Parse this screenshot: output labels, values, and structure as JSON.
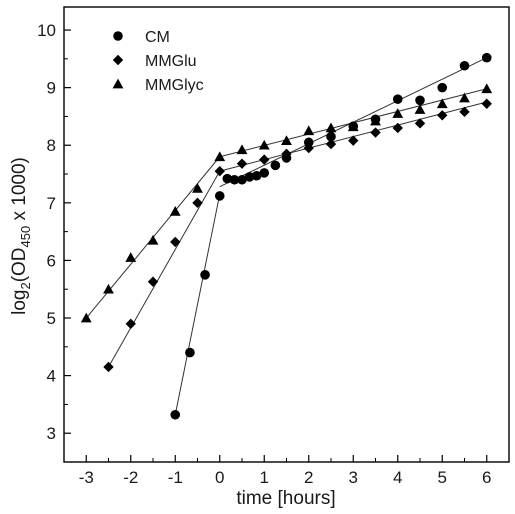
{
  "chart_data": {
    "type": "scatter",
    "xlabel": "time [hours]",
    "ylabel": "log2(OD450 x 1000)",
    "ylabel_parts": {
      "pre": "log",
      "sub1": "2",
      "mid": "(OD",
      "sub2": "450",
      "post": " x 1000)"
    },
    "xlim": [
      -3.5,
      6.5
    ],
    "ylim": [
      2.5,
      10.4
    ],
    "x_ticks": [
      -3,
      -2,
      -1,
      0,
      1,
      2,
      3,
      4,
      5,
      6
    ],
    "y_ticks": [
      3,
      4,
      5,
      6,
      7,
      8,
      9,
      10
    ],
    "grid": false,
    "legend_position": "top-left",
    "series": [
      {
        "name": "CM",
        "marker": "circle",
        "x": [
          -1,
          -0.67,
          -0.33,
          0,
          0.17,
          0.33,
          0.5,
          0.67,
          0.83,
          1,
          1.25,
          1.5,
          2,
          2.5,
          3,
          3.5,
          4,
          4.5,
          5,
          5.5,
          6
        ],
        "y": [
          3.32,
          4.4,
          5.75,
          7.12,
          7.42,
          7.4,
          7.4,
          7.45,
          7.47,
          7.52,
          7.65,
          7.78,
          8.05,
          8.15,
          8.33,
          8.45,
          8.8,
          8.78,
          9.0,
          9.38,
          9.52
        ],
        "fit_lines": [
          {
            "x": [
              -1,
              0
            ],
            "y": [
              3.32,
              7.15
            ]
          },
          {
            "x": [
              0,
              6
            ],
            "y": [
              7.28,
              9.52
            ]
          }
        ]
      },
      {
        "name": "MMGlu",
        "marker": "diamond",
        "x": [
          -2.5,
          -2,
          -1.5,
          -1,
          -0.5,
          0,
          0.5,
          1,
          1.5,
          2,
          2.5,
          3,
          3.5,
          4,
          4.5,
          5,
          5.5,
          6
        ],
        "y": [
          4.15,
          4.9,
          5.63,
          6.32,
          7.0,
          7.55,
          7.68,
          7.75,
          7.85,
          7.95,
          8.02,
          8.08,
          8.22,
          8.3,
          8.38,
          8.52,
          8.58,
          8.72
        ],
        "fit_lines": [
          {
            "x": [
              -2.5,
              0
            ],
            "y": [
              4.15,
              7.55
            ]
          },
          {
            "x": [
              0,
              6
            ],
            "y": [
              7.55,
              8.75
            ]
          }
        ]
      },
      {
        "name": "MMGlyc",
        "marker": "triangle",
        "x": [
          -3,
          -2.5,
          -2,
          -1.5,
          -1,
          -0.5,
          0,
          0.5,
          1,
          1.5,
          2,
          2.5,
          3,
          3.5,
          4,
          4.5,
          5,
          5.5,
          6
        ],
        "y": [
          5.0,
          5.5,
          6.05,
          6.35,
          6.85,
          7.25,
          7.8,
          7.92,
          8.0,
          8.08,
          8.25,
          8.3,
          8.32,
          8.42,
          8.55,
          8.62,
          8.72,
          8.82,
          8.98
        ],
        "fit_lines": [
          {
            "x": [
              -3,
              0
            ],
            "y": [
              5.0,
              7.8
            ]
          },
          {
            "x": [
              0,
              6
            ],
            "y": [
              7.8,
              8.98
            ]
          }
        ]
      }
    ]
  }
}
